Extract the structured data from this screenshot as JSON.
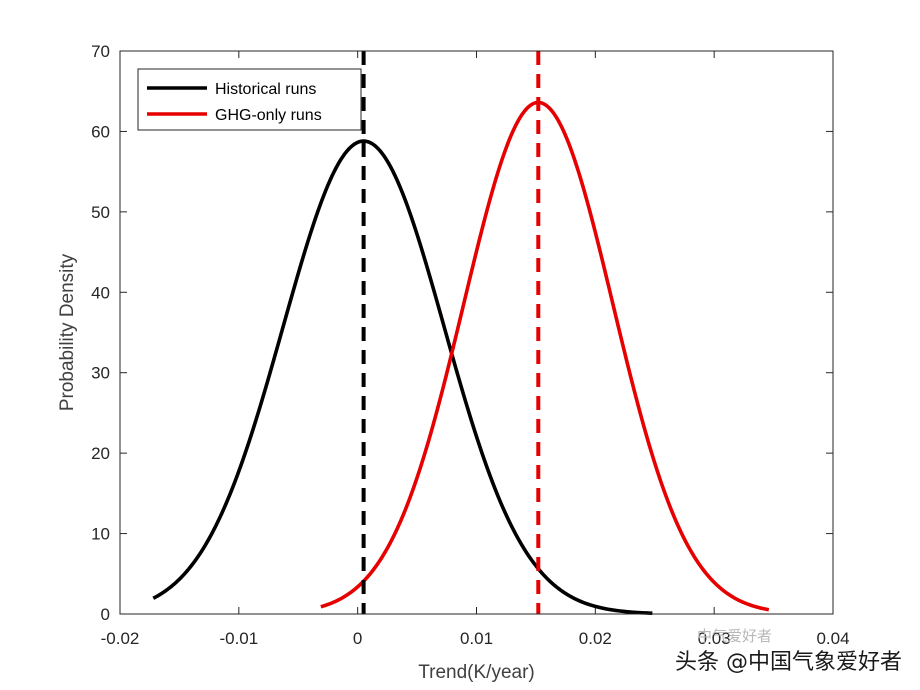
{
  "chart_data": {
    "type": "line",
    "xlabel": "Trend(K/year)",
    "ylabel": "Probability Density",
    "xlim": [
      -0.02,
      0.04
    ],
    "ylim": [
      0,
      70
    ],
    "xticks": [
      -0.02,
      -0.01,
      0,
      0.01,
      0.02,
      0.03,
      0.04
    ],
    "xtick_labels": [
      "-0.02",
      "-0.01",
      "0",
      "0.01",
      "0.02",
      "0.03",
      "0.04"
    ],
    "yticks": [
      0,
      10,
      20,
      30,
      40,
      50,
      60,
      70
    ],
    "ytick_labels": [
      "0",
      "10",
      "20",
      "30",
      "40",
      "50",
      "60",
      "70"
    ],
    "legend_position": "top-left",
    "series": [
      {
        "name": "Historical runs",
        "color": "#000000",
        "mean": 0.0005,
        "peak": 58.8,
        "x_range": [
          -0.0172,
          0.0248
        ]
      },
      {
        "name": "GHG-only runs",
        "color": "#e60000",
        "mean": 0.0152,
        "peak": 63.6,
        "x_range": [
          -0.0031,
          0.0346
        ]
      }
    ],
    "vertical_lines": [
      {
        "x": 0.0005,
        "color": "#000000",
        "style": "dashed"
      },
      {
        "x": 0.0152,
        "color": "#e60000",
        "style": "dashed"
      }
    ]
  },
  "watermark": {
    "text": "头条 @中国气象爱好者",
    "ghost_text": "中气爱好者"
  }
}
